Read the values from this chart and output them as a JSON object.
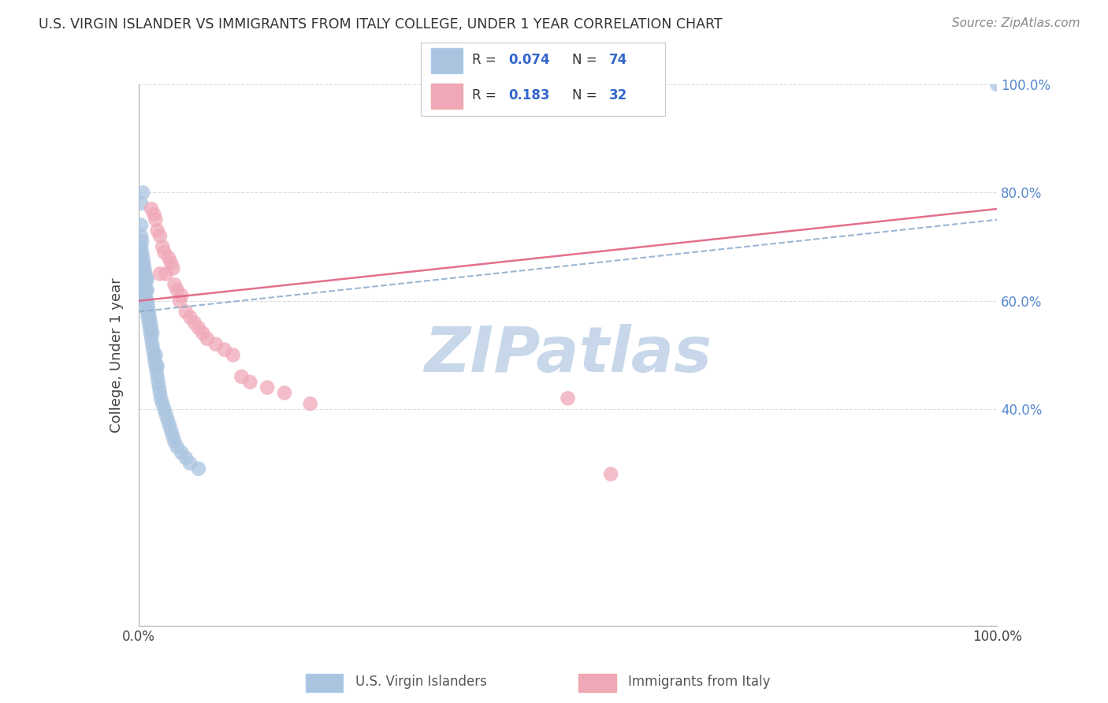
{
  "title": "U.S. VIRGIN ISLANDER VS IMMIGRANTS FROM ITALY COLLEGE, UNDER 1 YEAR CORRELATION CHART",
  "source": "Source: ZipAtlas.com",
  "ylabel": "College, Under 1 year",
  "R1": 0.074,
  "N1": 74,
  "R2": 0.183,
  "N2": 32,
  "blue_color": "#aac4e0",
  "pink_color": "#f0a8b8",
  "blue_line_color": "#88aacc",
  "pink_line_color": "#e06080",
  "blue_line_style": "--",
  "pink_line_style": "-",
  "legend_text_color": "#3366cc",
  "background_color": "#ffffff",
  "grid_color": "#dddddd",
  "watermark_color": "#c8d8ea",
  "right_tick_color": "#5588cc",
  "xlim": [
    0.0,
    1.0
  ],
  "ylim": [
    0.0,
    1.0
  ],
  "blue_x": [
    0.002,
    0.002,
    0.003,
    0.003,
    0.003,
    0.003,
    0.003,
    0.004,
    0.004,
    0.004,
    0.004,
    0.004,
    0.005,
    0.005,
    0.005,
    0.005,
    0.005,
    0.006,
    0.006,
    0.006,
    0.006,
    0.007,
    0.007,
    0.007,
    0.007,
    0.008,
    0.008,
    0.008,
    0.008,
    0.009,
    0.009,
    0.009,
    0.01,
    0.01,
    0.01,
    0.01,
    0.011,
    0.011,
    0.012,
    0.012,
    0.013,
    0.013,
    0.014,
    0.014,
    0.015,
    0.015,
    0.016,
    0.016,
    0.017,
    0.018,
    0.019,
    0.02,
    0.02,
    0.021,
    0.022,
    0.022,
    0.023,
    0.024,
    0.025,
    0.026,
    0.028,
    0.03,
    0.032,
    0.034,
    0.036,
    0.038,
    0.04,
    0.042,
    0.045,
    0.05,
    0.055,
    0.06,
    0.07,
    1.0
  ],
  "blue_y": [
    0.64,
    0.66,
    0.68,
    0.7,
    0.72,
    0.74,
    0.78,
    0.63,
    0.65,
    0.67,
    0.69,
    0.71,
    0.62,
    0.64,
    0.66,
    0.68,
    0.8,
    0.61,
    0.63,
    0.65,
    0.67,
    0.6,
    0.62,
    0.64,
    0.66,
    0.59,
    0.61,
    0.63,
    0.65,
    0.6,
    0.62,
    0.64,
    0.58,
    0.6,
    0.62,
    0.64,
    0.57,
    0.59,
    0.56,
    0.58,
    0.55,
    0.57,
    0.54,
    0.56,
    0.53,
    0.55,
    0.52,
    0.54,
    0.51,
    0.5,
    0.49,
    0.48,
    0.5,
    0.47,
    0.46,
    0.48,
    0.45,
    0.44,
    0.43,
    0.42,
    0.41,
    0.4,
    0.39,
    0.38,
    0.37,
    0.36,
    0.35,
    0.34,
    0.33,
    0.32,
    0.31,
    0.3,
    0.29,
    1.0
  ],
  "pink_x": [
    0.015,
    0.018,
    0.02,
    0.022,
    0.025,
    0.025,
    0.028,
    0.03,
    0.032,
    0.035,
    0.038,
    0.04,
    0.042,
    0.045,
    0.048,
    0.05,
    0.055,
    0.06,
    0.065,
    0.07,
    0.075,
    0.08,
    0.09,
    0.1,
    0.11,
    0.12,
    0.13,
    0.15,
    0.17,
    0.2,
    0.5,
    0.55
  ],
  "pink_y": [
    0.77,
    0.76,
    0.75,
    0.73,
    0.72,
    0.65,
    0.7,
    0.69,
    0.65,
    0.68,
    0.67,
    0.66,
    0.63,
    0.62,
    0.6,
    0.61,
    0.58,
    0.57,
    0.56,
    0.55,
    0.54,
    0.53,
    0.52,
    0.51,
    0.5,
    0.46,
    0.45,
    0.44,
    0.43,
    0.41,
    0.42,
    0.28
  ],
  "blue_line_x": [
    0.0,
    1.0
  ],
  "blue_line_y": [
    0.58,
    0.75
  ],
  "pink_line_x": [
    0.0,
    1.0
  ],
  "pink_line_y": [
    0.6,
    0.77
  ]
}
